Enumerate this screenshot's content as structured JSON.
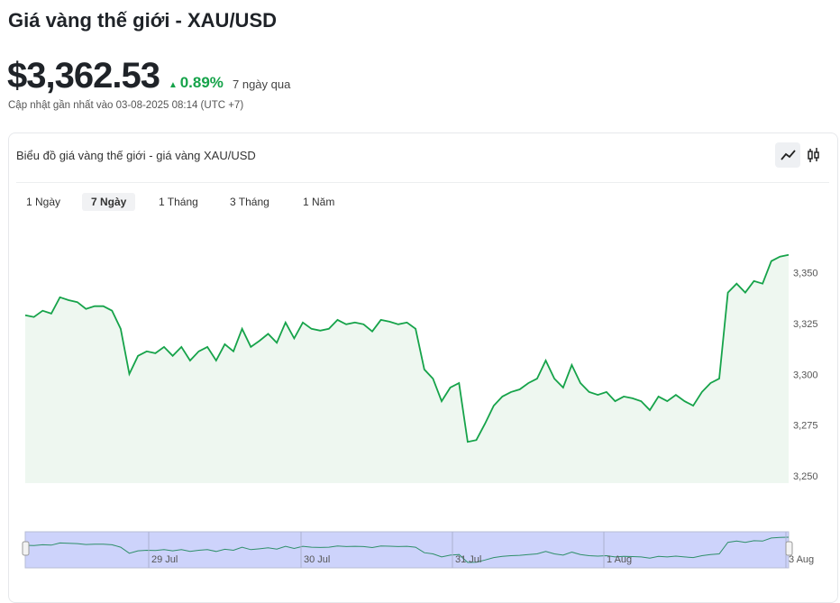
{
  "header": {
    "title": "Giá vàng thế giới - XAU/USD",
    "price": "$3,362.53",
    "change": "0.89%",
    "period": "7 ngày qua",
    "updated": "Cập nhật gần nhất vào 03-08-2025 08:14 (UTC +7)"
  },
  "card_title": "Biểu đồ giá vàng thế giới - giá vàng XAU/USD",
  "tabs": [
    "1 Ngày",
    "7 Ngày",
    "1 Tháng",
    "3 Tháng",
    "1 Năm"
  ],
  "chart_data": {
    "type": "line",
    "color": "#16a34a",
    "values": [
      3329.6,
      3328.7,
      3331.8,
      3330.4,
      3338.4,
      3337,
      3336,
      3332.7,
      3334,
      3334,
      3331.8,
      3322.9,
      3300.7,
      3309.6,
      3311.8,
      3310.9,
      3314,
      3309.6,
      3314,
      3307.3,
      3311.8,
      3314,
      3307.3,
      3315.3,
      3311.8,
      3322.9,
      3314,
      3317,
      3320.4,
      3316,
      3326,
      3318.2,
      3326,
      3322.9,
      3322,
      3322.9,
      3327.3,
      3325.1,
      3326,
      3325.1,
      3321.6,
      3327.3,
      3326.4,
      3325.1,
      3326,
      3322.9,
      3302.9,
      3298.4,
      3287.3,
      3294,
      3296.2,
      3267.3,
      3268.2,
      3276.2,
      3285.1,
      3289.6,
      3291.8,
      3293.1,
      3296.2,
      3298.4,
      3307.3,
      3298.4,
      3294,
      3305.1,
      3296.2,
      3291.8,
      3290.4,
      3291.8,
      3287.3,
      3289.6,
      3288.7,
      3287.3,
      3282.9,
      3289.6,
      3287.3,
      3290.4,
      3287.3,
      3285.1,
      3291.8,
      3296.2,
      3298.4,
      3340.7,
      3345.1,
      3340.7,
      3346.4,
      3345.1,
      3356.2,
      3358.4,
      3359.3
    ],
    "ylim": [
      3247,
      3376
    ],
    "yticks": [
      {
        "value": 3250,
        "label": "3,250"
      },
      {
        "value": 3275,
        "label": "3,275"
      },
      {
        "value": 3300,
        "label": "3,300"
      },
      {
        "value": 3325,
        "label": "3,325"
      },
      {
        "value": 3350,
        "label": "3,350"
      }
    ],
    "navigator_labels": [
      "29 Jul",
      "30 Jul",
      "31 Jul",
      "1 Aug",
      "3 Aug"
    ]
  }
}
